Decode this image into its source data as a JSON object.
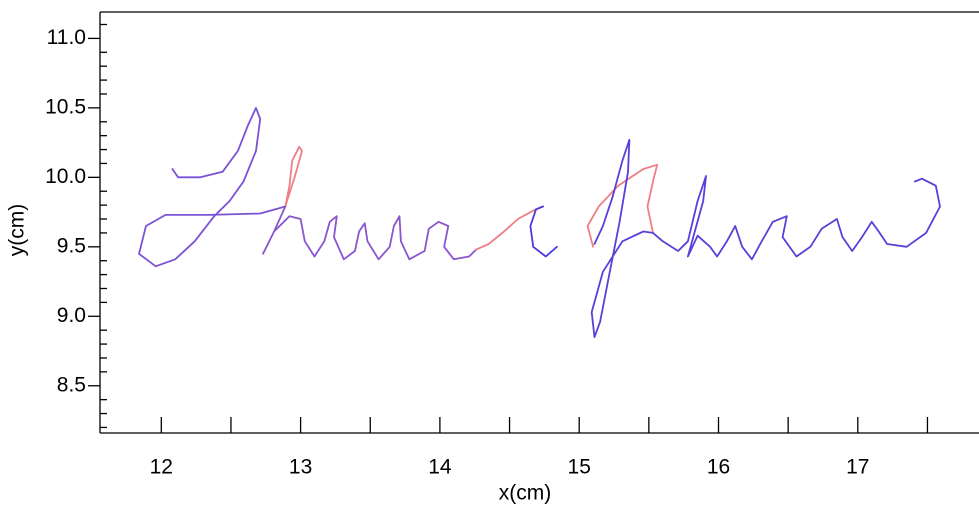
{
  "chart_data": {
    "type": "line",
    "xlabel": "x(cm)",
    "ylabel": "y(cm)",
    "xlim": [
      11.56,
      17.87
    ],
    "ylim": [
      8.16,
      11.19
    ],
    "xticks": [
      12,
      13,
      14,
      15,
      16,
      17
    ],
    "xminorticks": [
      12.5,
      13.5,
      14.5,
      15.5,
      16.5,
      17.5
    ],
    "yticks": [
      {
        "value": 8.5,
        "label": "8.5"
      },
      {
        "value": 9,
        "label": "9.0"
      },
      9.5,
      {
        "value": 10,
        "label": "10.0"
      },
      10.5,
      {
        "value": 11,
        "label": "11.0"
      }
    ],
    "yminorticks": [
      8.2,
      8.3,
      8.4,
      8.6,
      8.7,
      8.8,
      8.9,
      9.1,
      9.2,
      9.3,
      9.4,
      9.6,
      9.7,
      9.8,
      9.9,
      10.1,
      10.2,
      10.3,
      10.4,
      10.6,
      10.7,
      10.8,
      10.9,
      11.1
    ],
    "series": [
      {
        "color": "#7b52d6",
        "x": [
          12.08,
          12.12,
          12.28,
          12.44,
          12.55,
          12.62,
          12.68,
          12.71,
          12.68,
          12.59,
          12.49,
          12.38,
          12.24,
          12.1,
          11.96,
          11.84,
          11.89,
          12.03,
          12.35,
          12.71,
          12.89
        ],
        "values": [
          10.06,
          10.0,
          10.0,
          10.04,
          10.19,
          10.37,
          10.5,
          10.42,
          10.19,
          9.97,
          9.83,
          9.72,
          9.54,
          9.41,
          9.36,
          9.45,
          9.65,
          9.73,
          9.73,
          9.74,
          9.79
        ]
      },
      {
        "color": "#ee7f86",
        "x": [
          12.89,
          12.92,
          12.94,
          12.99,
          13.01,
          12.96,
          12.89
        ],
        "values": [
          9.79,
          9.94,
          10.12,
          10.22,
          10.19,
          10.01,
          9.79
        ]
      },
      {
        "color": "#8a55cf",
        "x": [
          12.89,
          12.81,
          12.73,
          12.81,
          12.92,
          13.0,
          13.03,
          13.1,
          13.17,
          13.21,
          13.26,
          13.24,
          13.31,
          13.39,
          13.42,
          13.46,
          13.48,
          13.56,
          13.64,
          13.67,
          13.71,
          13.72,
          13.78,
          13.89,
          13.92,
          13.99,
          14.06,
          14.03,
          14.1,
          14.21,
          14.26
        ],
        "values": [
          9.79,
          9.61,
          9.45,
          9.61,
          9.72,
          9.7,
          9.54,
          9.43,
          9.54,
          9.68,
          9.72,
          9.57,
          9.41,
          9.47,
          9.61,
          9.67,
          9.54,
          9.41,
          9.5,
          9.65,
          9.72,
          9.54,
          9.41,
          9.47,
          9.63,
          9.68,
          9.65,
          9.5,
          9.41,
          9.43,
          9.48
        ]
      },
      {
        "color": "#ee7f86",
        "x": [
          14.26,
          14.35,
          14.46,
          14.56,
          14.67,
          14.74
        ],
        "values": [
          9.48,
          9.52,
          9.61,
          9.7,
          9.76,
          9.79
        ]
      },
      {
        "color": "#4a3ae0",
        "x": [
          14.74,
          14.69,
          14.65,
          14.67,
          14.76,
          14.84
        ],
        "values": [
          9.79,
          9.77,
          9.65,
          9.5,
          9.43,
          9.5
        ]
      },
      {
        "color": "#ee7f86",
        "x": [
          15.1,
          15.06,
          15.14,
          15.28,
          15.46,
          15.56,
          15.53,
          15.49,
          15.53
        ],
        "values": [
          9.5,
          9.65,
          9.79,
          9.94,
          10.06,
          10.09,
          9.97,
          9.79,
          9.6
        ]
      },
      {
        "color": "#5a3fd8",
        "x": [
          15.11,
          15.17,
          15.24,
          15.31,
          15.36,
          15.35,
          15.29,
          15.22,
          15.15,
          15.11,
          15.09,
          15.17,
          15.31,
          15.46,
          15.53,
          15.6,
          15.71,
          15.78,
          15.85,
          15.91,
          15.89,
          15.78,
          15.85,
          15.94,
          15.99,
          16.06,
          16.12,
          16.17,
          16.24,
          16.31,
          16.39,
          16.49,
          16.46,
          16.56,
          16.66,
          16.74,
          16.85,
          16.89,
          16.96,
          17.03,
          17.1,
          17.15,
          17.21,
          17.35,
          17.49,
          17.59,
          17.56,
          17.46,
          17.41
        ],
        "values": [
          9.52,
          9.65,
          9.86,
          10.12,
          10.27,
          10.04,
          9.68,
          9.32,
          8.96,
          8.85,
          9.03,
          9.32,
          9.54,
          9.61,
          9.6,
          9.54,
          9.47,
          9.54,
          9.83,
          10.01,
          9.83,
          9.43,
          9.58,
          9.5,
          9.43,
          9.54,
          9.65,
          9.5,
          9.41,
          9.54,
          9.68,
          9.72,
          9.57,
          9.43,
          9.5,
          9.63,
          9.7,
          9.57,
          9.47,
          9.57,
          9.68,
          9.61,
          9.52,
          9.5,
          9.6,
          9.79,
          9.94,
          9.99,
          9.97
        ]
      }
    ]
  }
}
